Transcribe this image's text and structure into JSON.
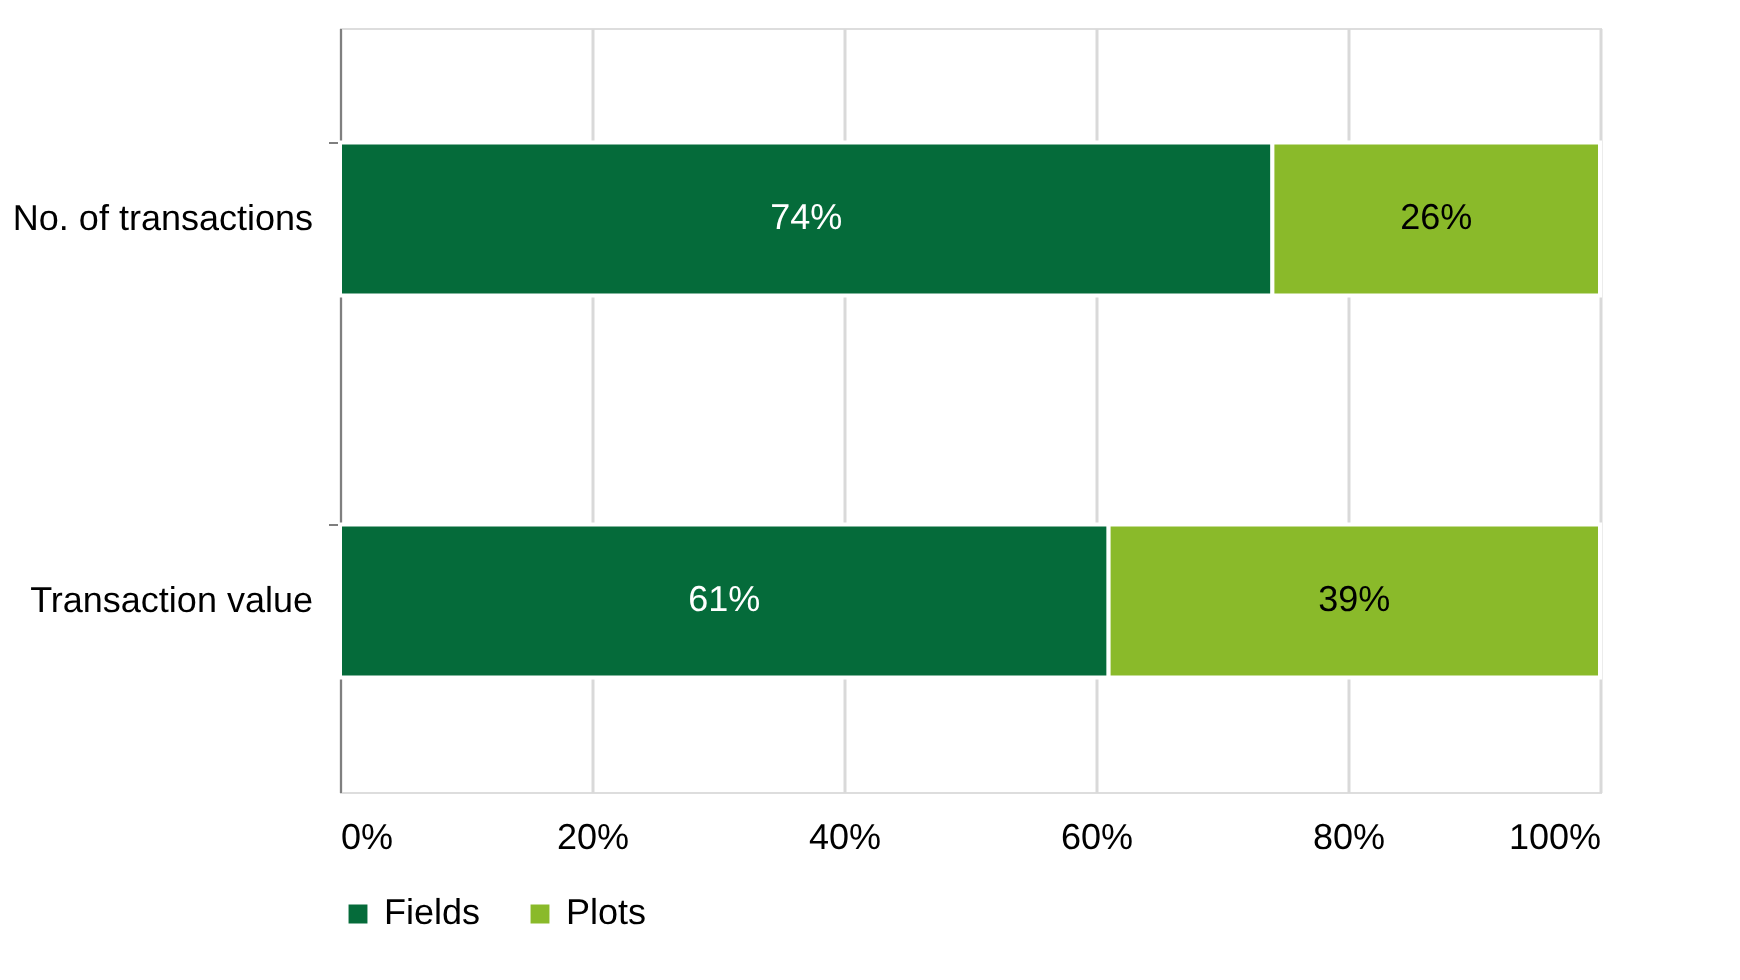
{
  "chart_data": {
    "type": "bar",
    "orientation": "horizontal",
    "stacked": true,
    "categories": [
      "No. of transactions",
      "Transaction value"
    ],
    "series": [
      {
        "name": "Fields",
        "color": "#056b3a",
        "values": [
          74,
          61
        ],
        "value_labels": [
          "74%",
          "61%"
        ]
      },
      {
        "name": "Plots",
        "color": "#8aba2a",
        "values": [
          26,
          39
        ],
        "value_labels": [
          "26%",
          "39%"
        ]
      }
    ],
    "xlim": [
      0,
      100
    ],
    "xticks": [
      {
        "value": 0,
        "label": "0%"
      },
      {
        "value": 20,
        "label": "20%"
      },
      {
        "value": 40,
        "label": "40%"
      },
      {
        "value": 60,
        "label": "60%"
      },
      {
        "value": 80,
        "label": "80%"
      },
      {
        "value": 100,
        "label": "100%"
      }
    ],
    "grid": "x",
    "legend": "bottom"
  }
}
